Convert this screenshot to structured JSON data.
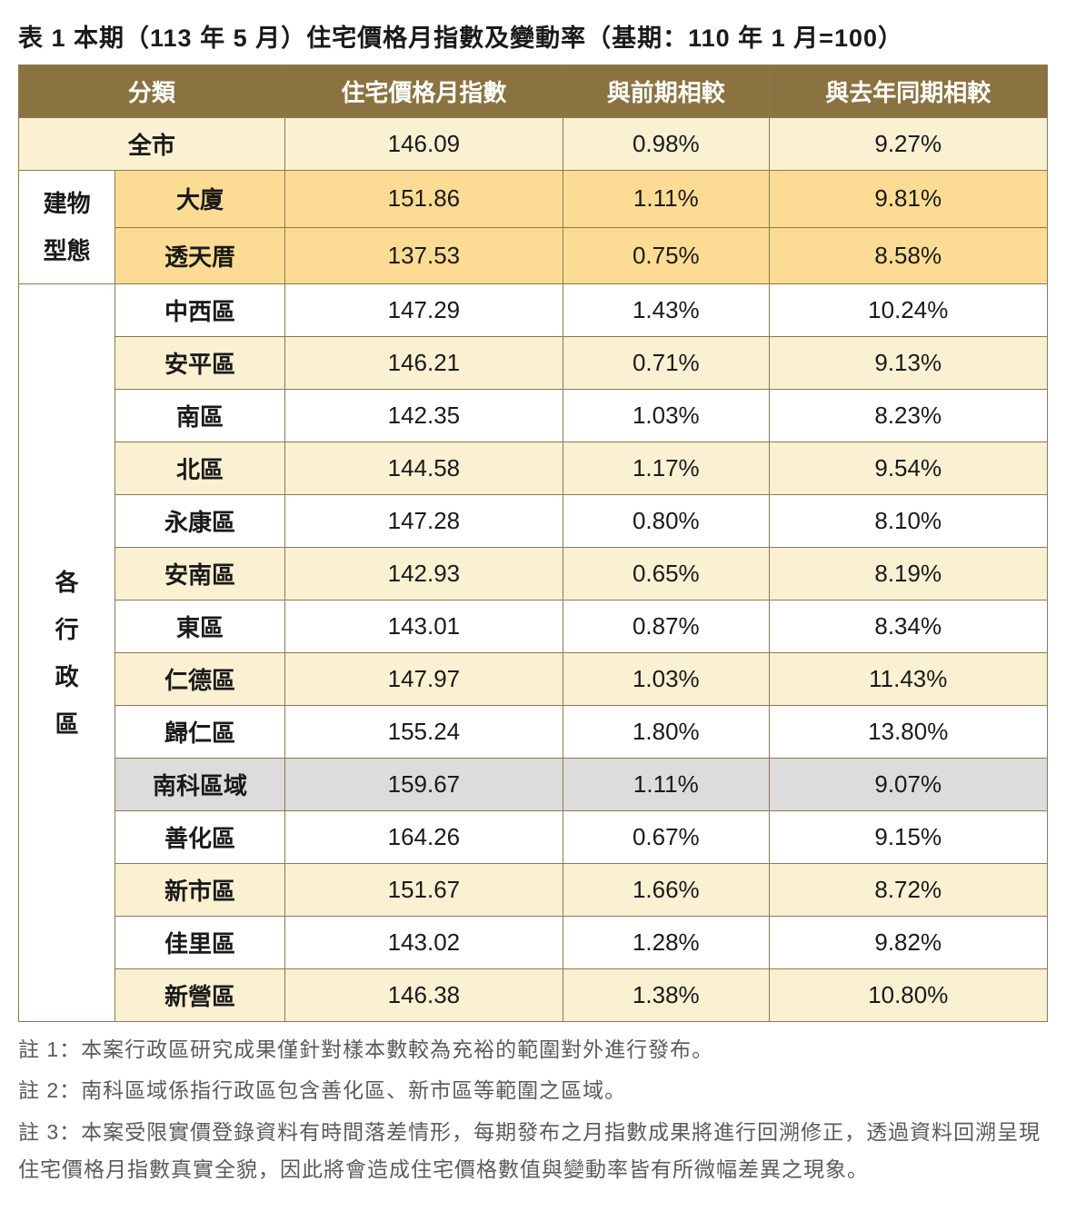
{
  "title": "表 1 本期（113 年 5 月）住宅價格月指數及變動率（基期：110 年 1 月=100）",
  "headers": {
    "col1": "分類",
    "col2": "住宅價格月指數",
    "col3": "與前期相較",
    "col4": "與去年同期相較"
  },
  "citywide": {
    "label": "全市",
    "index": "146.09",
    "mom": "0.98%",
    "yoy": "9.27%"
  },
  "buildingType": {
    "groupLabel": "建物\n型態",
    "rows": [
      {
        "label": "大廈",
        "index": "151.86",
        "mom": "1.11%",
        "yoy": "9.81%"
      },
      {
        "label": "透天厝",
        "index": "137.53",
        "mom": "0.75%",
        "yoy": "8.58%"
      }
    ]
  },
  "districts": {
    "groupLabel": "各\n行\n政\n區",
    "rows": [
      {
        "label": "中西區",
        "index": "147.29",
        "mom": "1.43%",
        "yoy": "10.24%",
        "style": "white"
      },
      {
        "label": "安平區",
        "index": "146.21",
        "mom": "0.71%",
        "yoy": "9.13%",
        "style": "cream"
      },
      {
        "label": "南區",
        "index": "142.35",
        "mom": "1.03%",
        "yoy": "8.23%",
        "style": "white"
      },
      {
        "label": "北區",
        "index": "144.58",
        "mom": "1.17%",
        "yoy": "9.54%",
        "style": "cream"
      },
      {
        "label": "永康區",
        "index": "147.28",
        "mom": "0.80%",
        "yoy": "8.10%",
        "style": "white"
      },
      {
        "label": "安南區",
        "index": "142.93",
        "mom": "0.65%",
        "yoy": "8.19%",
        "style": "cream"
      },
      {
        "label": "東區",
        "index": "143.01",
        "mom": "0.87%",
        "yoy": "8.34%",
        "style": "white"
      },
      {
        "label": "仁德區",
        "index": "147.97",
        "mom": "1.03%",
        "yoy": "11.43%",
        "style": "cream"
      },
      {
        "label": "歸仁區",
        "index": "155.24",
        "mom": "1.80%",
        "yoy": "13.80%",
        "style": "white"
      },
      {
        "label": "南科區域",
        "index": "159.67",
        "mom": "1.11%",
        "yoy": "9.07%",
        "style": "grey"
      },
      {
        "label": "善化區",
        "index": "164.26",
        "mom": "0.67%",
        "yoy": "9.15%",
        "style": "white"
      },
      {
        "label": "新市區",
        "index": "151.67",
        "mom": "1.66%",
        "yoy": "8.72%",
        "style": "cream"
      },
      {
        "label": "佳里區",
        "index": "143.02",
        "mom": "1.28%",
        "yoy": "9.82%",
        "style": "white"
      },
      {
        "label": "新營區",
        "index": "146.38",
        "mom": "1.38%",
        "yoy": "10.80%",
        "style": "cream"
      }
    ]
  },
  "notes": [
    "註 1：本案行政區研究成果僅針對樣本數較為充裕的範圍對外進行發布。",
    "註 2：南科區域係指行政區包含善化區、新市區等範圍之區域。",
    "註 3：本案受限實價登錄資料有時間落差情形，每期發布之月指數成果將進行回溯修正，透過資料回溯呈現住宅價格月指數真實全貌，因此將會造成住宅價格數值與變動率皆有所微幅差異之現象。"
  ],
  "colors": {
    "headerBg": "#8b7341",
    "headerText": "#ffffff",
    "cream": "#faf0d2",
    "orange": "#fcdc95",
    "grey": "#dedbdc",
    "border": "#8a7a50",
    "noteText": "#5b5b5b"
  }
}
